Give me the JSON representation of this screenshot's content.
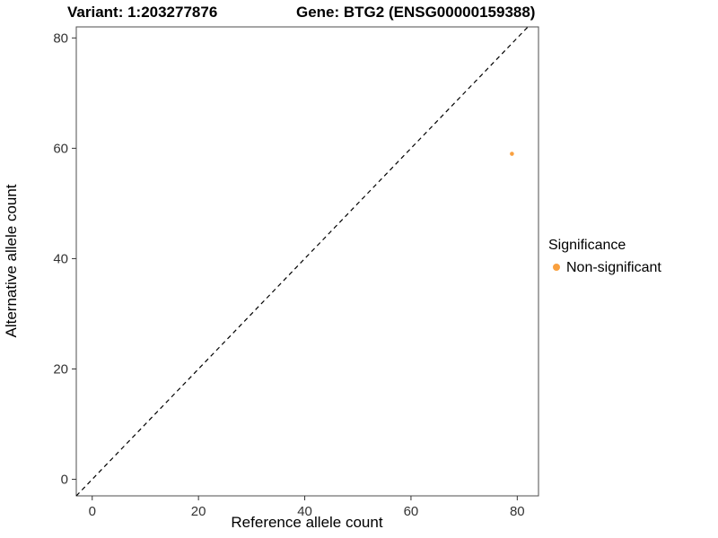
{
  "chart_data": {
    "type": "scatter",
    "title_left": "Variant: 1:203277876",
    "title_right": "Gene: BTG2 (ENSG00000159388)",
    "xlabel": "Reference allele count",
    "ylabel": "Alternative allele count",
    "xlim": [
      -3,
      84
    ],
    "ylim": [
      -3,
      82
    ],
    "x_ticks": [
      0,
      20,
      40,
      60,
      80
    ],
    "y_ticks": [
      0,
      20,
      40,
      60,
      80
    ],
    "grid": false,
    "legend_position": "right",
    "identity_line": {
      "slope": 1,
      "intercept": 0,
      "style": "dashed",
      "color": "#000000"
    },
    "series": [
      {
        "name": "Non-significant",
        "color": "#F9A03F",
        "points": [
          {
            "x": 79,
            "y": 59
          }
        ]
      }
    ],
    "legend": {
      "title": "Significance",
      "entries": [
        {
          "label": "Non-significant",
          "color": "#F9A03F"
        }
      ]
    },
    "panel": {
      "border_color": "#4d4d4d",
      "background": "#ffffff"
    }
  }
}
